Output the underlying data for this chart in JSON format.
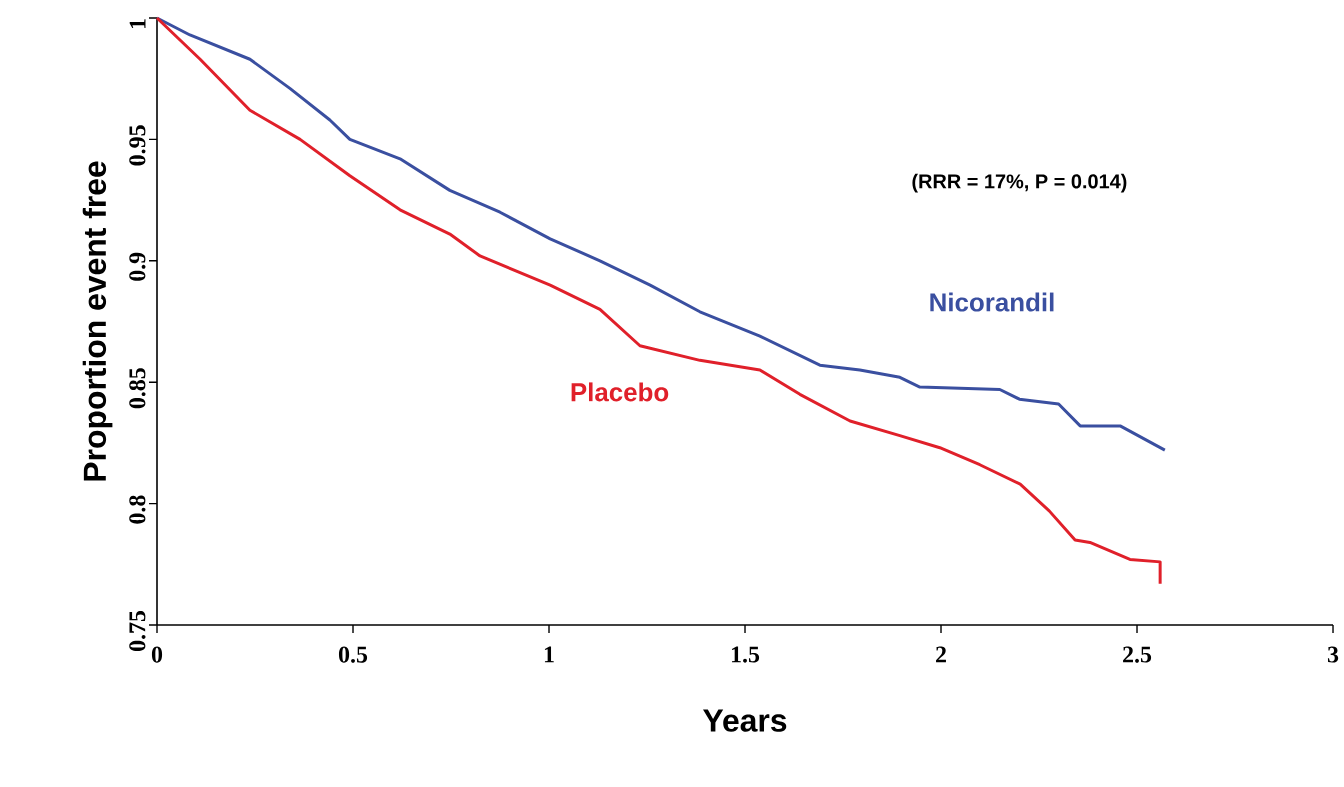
{
  "chart_data": {
    "type": "line",
    "xlabel": "Years",
    "ylabel": "Proportion event free",
    "annotations": [
      "(RRR  = 17%, P = 0.014)"
    ],
    "xlim": [
      0,
      3
    ],
    "xticks": [
      0,
      0.5,
      1,
      1.5,
      2,
      2.5,
      3
    ],
    "ylim": [
      0.75,
      1
    ],
    "yticks": [
      0.75,
      0.8,
      0.85,
      0.9,
      0.95,
      1
    ],
    "grid": false,
    "legend": false,
    "marker": "none",
    "line_style": "solid",
    "series": [
      {
        "name": "Nicorandil",
        "color": "#3a4fa0",
        "x": [
          0,
          0.084,
          0.237,
          0.339,
          0.441,
          0.492,
          0.62,
          0.747,
          0.875,
          1.003,
          1.13,
          1.258,
          1.385,
          1.538,
          1.691,
          1.793,
          1.895,
          1.946,
          2.15,
          2.2,
          2.3,
          2.355,
          2.457,
          2.571
        ],
        "values": [
          1,
          0.993,
          0.983,
          0.971,
          0.958,
          0.95,
          0.942,
          0.929,
          0.92,
          0.909,
          0.9,
          0.89,
          0.879,
          0.869,
          0.857,
          0.855,
          0.852,
          0.848,
          0.847,
          0.843,
          0.841,
          0.832,
          0.832,
          0.822
        ]
      },
      {
        "name": "Placebo",
        "color": "#e0202a",
        "x": [
          0,
          0.11,
          0.237,
          0.365,
          0.492,
          0.62,
          0.747,
          0.824,
          1.003,
          1.13,
          1.232,
          1.385,
          1.538,
          1.64,
          1.768,
          1.895,
          1.997,
          2.099,
          2.202,
          2.276,
          2.342,
          2.38,
          2.482,
          2.559,
          2.559
        ],
        "values": [
          1,
          0.983,
          0.962,
          0.95,
          0.935,
          0.921,
          0.911,
          0.902,
          0.89,
          0.88,
          0.865,
          0.859,
          0.855,
          0.845,
          0.834,
          0.828,
          0.823,
          0.816,
          0.808,
          0.797,
          0.785,
          0.784,
          0.777,
          0.776,
          0.767
        ]
      }
    ]
  }
}
